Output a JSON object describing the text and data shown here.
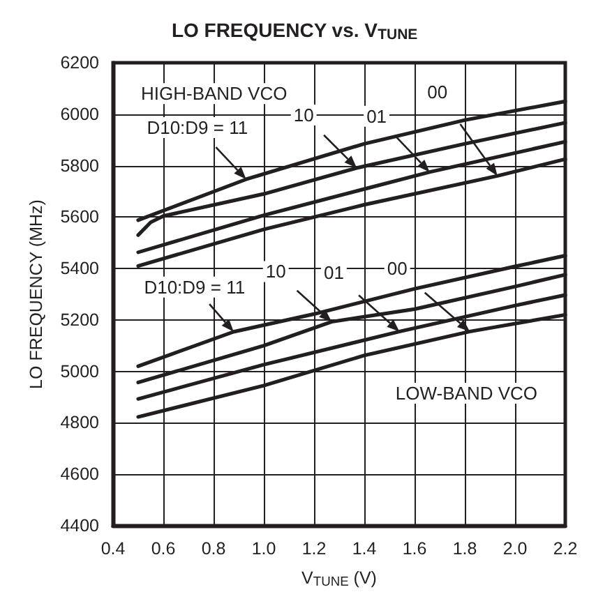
{
  "chart_data": {
    "type": "line",
    "title": "LO FREQUENCY vs. V$_{TUNE}$",
    "xlabel": "V$_{TUNE}$ (V)",
    "ylabel": "LO FREQUENCY (MHz)",
    "series": [
      {
        "color": "#231f20",
        "x": [
          0.5,
          0.8,
          0.93,
          1.4,
          1.8,
          2.2
        ],
        "values": [
          5588,
          5699,
          5747,
          5885,
          5977,
          6050
        ]
      },
      {
        "color": "#231f20",
        "x": [
          0.5,
          0.55,
          0.6,
          1.0,
          1.37,
          1.8,
          2.2
        ],
        "values": [
          5530,
          5580,
          5604,
          5690,
          5791,
          5885,
          5967
        ]
      },
      {
        "color": "#231f20",
        "x": [
          0.5,
          1.0,
          1.4,
          1.66,
          2.2
        ],
        "values": [
          5463,
          5607,
          5709,
          5775,
          5893
        ]
      },
      {
        "color": "#231f20",
        "x": [
          0.5,
          1.0,
          1.4,
          1.93,
          2.2
        ],
        "values": [
          5410,
          5552,
          5648,
          5760,
          5825
        ]
      },
      {
        "color": "#231f20",
        "x": [
          0.5,
          0.88,
          1.2,
          1.6,
          2.0,
          2.2
        ],
        "values": [
          5020,
          5154,
          5223,
          5321,
          5408,
          5450
        ]
      },
      {
        "color": "#231f20",
        "x": [
          0.5,
          1.0,
          1.27,
          1.6,
          2.0,
          2.2
        ],
        "values": [
          4957,
          5100,
          5193,
          5242,
          5330,
          5376
        ]
      },
      {
        "color": "#231f20",
        "x": [
          0.5,
          1.0,
          1.54,
          2.0,
          2.2
        ],
        "values": [
          4893,
          5026,
          5155,
          5256,
          5297
        ]
      },
      {
        "color": "#231f20",
        "x": [
          0.5,
          1.0,
          1.4,
          1.82,
          2.2
        ],
        "values": [
          4823,
          4945,
          5062,
          5155,
          5220
        ]
      }
    ],
    "xlim": [
      0.4,
      2.2
    ],
    "xticks": [
      0.4,
      0.6,
      0.8,
      {
        "value": 1,
        "label": "1.0"
      },
      1.2,
      1.4,
      1.6,
      1.8,
      {
        "value": 2,
        "label": "2.0"
      },
      2.2
    ],
    "ylim": [
      4400,
      6200
    ],
    "yticks": [
      4400,
      4600,
      4800,
      5000,
      5200,
      5400,
      5600,
      5800,
      6000,
      6200
    ],
    "grid": true,
    "marker": "none",
    "line_style": "solid",
    "annotations": [
      "HIGH-BAND VCO",
      "D10:D9 = 11",
      "10",
      "01",
      "00",
      "D10:D9 = 11",
      "10",
      "01",
      "00",
      "LOW-BAND VCO"
    ]
  }
}
